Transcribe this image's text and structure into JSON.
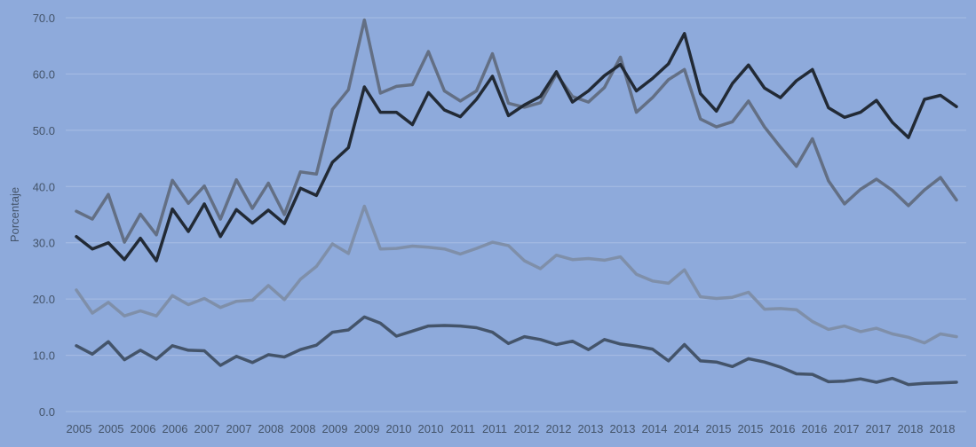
{
  "chart_data": {
    "type": "line",
    "title": "",
    "xlabel": "",
    "ylabel": "Porcentaje",
    "ylim": [
      0,
      70
    ],
    "yticks": [
      "0.0",
      "10.0",
      "20.0",
      "30.0",
      "40.0",
      "50.0",
      "60.0",
      "70.0"
    ],
    "x_tick_labels": [
      "2005",
      "2005",
      "2006",
      "2006",
      "2007",
      "2007",
      "2008",
      "2008",
      "2009",
      "2009",
      "2010",
      "2010",
      "2011",
      "2011",
      "2012",
      "2012",
      "2013",
      "2013",
      "2014",
      "2014",
      "2015",
      "2015",
      "2016",
      "2016",
      "2017",
      "2017",
      "2018",
      "2018"
    ],
    "grid": "horizontal",
    "legend": "none",
    "series": [
      {
        "color": "#636f84",
        "values": [
          35.6,
          34.2,
          38.6,
          30.1,
          35.1,
          31.4,
          41.1,
          37.0,
          40.1,
          34.2,
          41.2,
          36.1,
          40.6,
          35.0,
          42.6,
          42.2,
          53.7,
          57.2,
          69.6,
          56.6,
          57.8,
          58.1,
          64.0,
          57.0,
          55.2,
          57.0,
          63.6,
          54.8,
          54.1,
          54.9,
          60.0,
          56.0,
          55.0,
          57.6,
          63.0,
          53.2,
          55.8,
          59.0,
          60.8,
          52.0,
          50.6,
          51.5,
          55.2,
          50.6,
          47.0,
          43.6,
          48.5,
          41.0,
          36.9,
          39.5,
          41.3,
          39.3,
          36.6,
          39.4,
          41.6,
          37.6
        ]
      },
      {
        "color": "#222a35",
        "values": [
          31.1,
          28.9,
          30.0,
          27.0,
          30.8,
          26.8,
          36.0,
          32.0,
          36.9,
          31.1,
          35.9,
          33.5,
          35.8,
          33.4,
          39.7,
          38.4,
          44.3,
          46.9,
          57.7,
          53.2,
          53.2,
          51.0,
          56.7,
          53.6,
          52.4,
          55.5,
          59.6,
          52.6,
          54.5,
          56.0,
          60.4,
          55.0,
          57.0,
          59.7,
          61.7,
          57.0,
          59.2,
          61.8,
          67.2,
          56.5,
          53.4,
          58.3,
          61.6,
          57.5,
          55.8,
          58.8,
          60.8,
          54.0,
          52.3,
          53.2,
          55.3,
          51.4,
          48.7,
          55.5,
          56.2,
          54.2
        ]
      },
      {
        "color": "#7f8fa9",
        "values": [
          21.6,
          17.5,
          19.4,
          17.0,
          17.9,
          17.0,
          20.6,
          19.0,
          20.1,
          18.5,
          19.6,
          19.8,
          22.4,
          19.9,
          23.5,
          25.8,
          29.8,
          28.1,
          36.5,
          28.9,
          29.0,
          29.4,
          29.2,
          28.9,
          28.0,
          29.0,
          30.1,
          29.5,
          26.8,
          25.4,
          27.8,
          27.0,
          27.2,
          26.9,
          27.5,
          24.4,
          23.2,
          22.8,
          25.2,
          20.4,
          20.1,
          20.3,
          21.2,
          18.2,
          18.3,
          18.1,
          16.0,
          14.6,
          15.2,
          14.2,
          14.8,
          13.8,
          13.2,
          12.2,
          13.8,
          13.3
        ]
      },
      {
        "color": "#44546a",
        "values": [
          11.7,
          10.2,
          12.4,
          9.2,
          10.9,
          9.3,
          11.7,
          10.9,
          10.8,
          8.2,
          9.8,
          8.7,
          10.1,
          9.7,
          11.0,
          11.8,
          14.1,
          14.5,
          16.8,
          15.7,
          13.4,
          14.3,
          15.2,
          15.3,
          15.2,
          14.9,
          14.1,
          12.1,
          13.3,
          12.8,
          11.9,
          12.5,
          11.0,
          12.8,
          12.0,
          11.6,
          11.1,
          9.0,
          11.9,
          9.0,
          8.8,
          8.0,
          9.4,
          8.8,
          7.9,
          6.7,
          6.6,
          5.3,
          5.4,
          5.8,
          5.2,
          5.9,
          4.8,
          5.0,
          5.1,
          5.2
        ]
      }
    ]
  }
}
